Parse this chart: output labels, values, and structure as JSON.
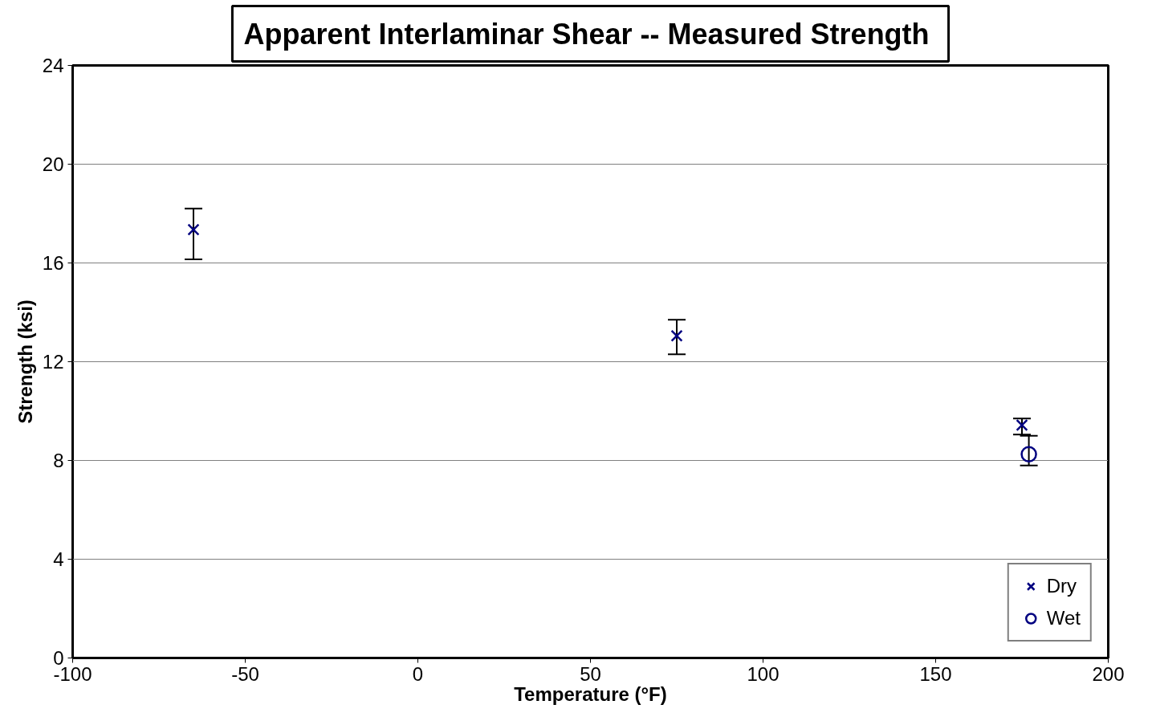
{
  "chart_data": {
    "type": "scatter",
    "title": "Apparent Interlaminar Shear  -- Measured Strength",
    "xlabel": "Temperature (°F)",
    "ylabel": "Strength (ksi)",
    "xlim": [
      -100,
      200
    ],
    "xticks": [
      -100,
      -50,
      0,
      50,
      100,
      150,
      200
    ],
    "ylim": [
      0,
      24
    ],
    "yticks": [
      0,
      4,
      8,
      12,
      16,
      20,
      24
    ],
    "grid": "y",
    "legend": "bottom right",
    "series": [
      {
        "name": "Dry",
        "color": "#000080",
        "marker": "cross",
        "x": [
          -65,
          75,
          175
        ],
        "values": [
          17.35,
          13.05,
          9.43
        ],
        "errors": [
          [
            16.15,
            18.2
          ],
          [
            12.3,
            13.7
          ],
          [
            9.05,
            9.7
          ]
        ]
      },
      {
        "name": "Wet",
        "color": "#000080",
        "marker": "circle",
        "x": [
          177
        ],
        "values": [
          8.25
        ],
        "errors": [
          [
            7.8,
            9.0
          ]
        ]
      }
    ]
  }
}
